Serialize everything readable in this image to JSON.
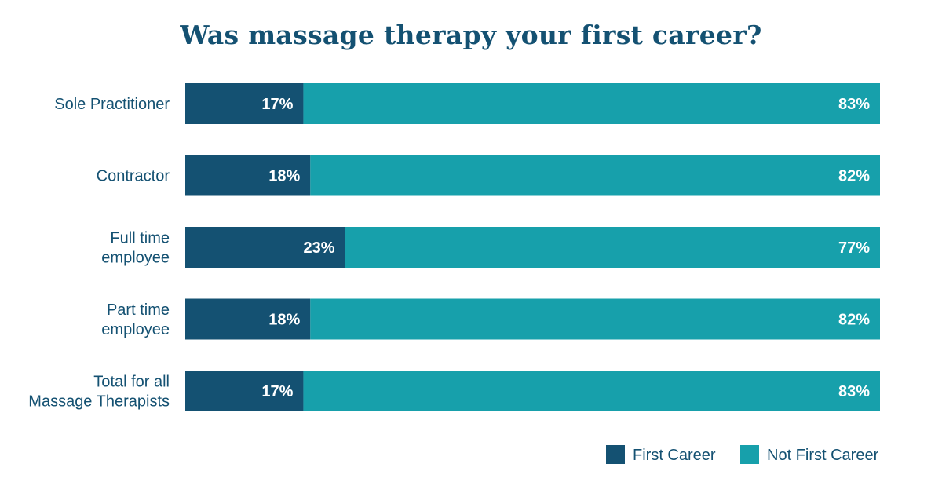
{
  "chart_data": {
    "type": "bar",
    "orientation": "horizontal",
    "stacked": true,
    "title": "Was massage therapy your first career?",
    "categories": [
      [
        "Sole Practitioner"
      ],
      [
        "Contractor"
      ],
      [
        "Full time",
        "employee"
      ],
      [
        "Part time",
        "employee"
      ],
      [
        "Total for all",
        "Massage Therapists"
      ]
    ],
    "series": [
      {
        "name": "First Career",
        "values": [
          17,
          18,
          23,
          18,
          17
        ],
        "labels": [
          "17%",
          "18%",
          "23%",
          "18%",
          "17%"
        ],
        "color": "#145172"
      },
      {
        "name": "Not First Career",
        "values": [
          83,
          82,
          77,
          82,
          83
        ],
        "labels": [
          "83%",
          "82%",
          "77%",
          "82%",
          "83%"
        ],
        "color": "#17a0ab"
      }
    ],
    "xlim": [
      0,
      100
    ],
    "unit": "%",
    "grid": false,
    "legend_position": "bottom-right"
  },
  "colors": {
    "title": "#145172",
    "category_label": "#145172",
    "legend_text": "#145172"
  }
}
